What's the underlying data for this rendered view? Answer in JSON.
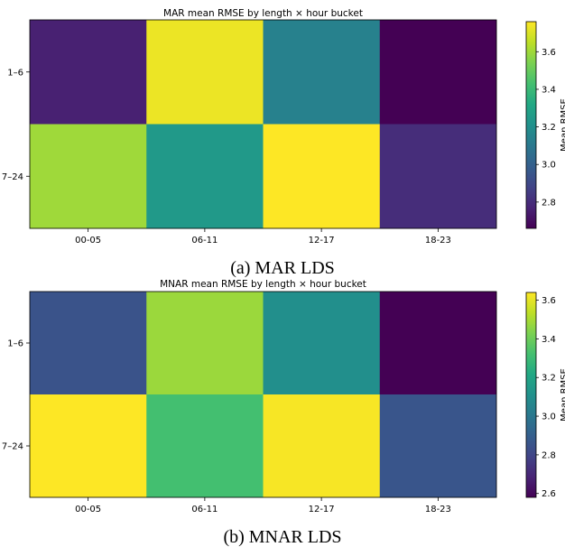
{
  "chart_data": [
    {
      "type": "heatmap",
      "title": "MAR mean RMSE by length × hour bucket",
      "caption": "(a) MAR LDS",
      "x_categories": [
        "00-05",
        "06-11",
        "12-17",
        "18-23"
      ],
      "y_categories": [
        "1–6",
        "7–24"
      ],
      "values": [
        [
          2.76,
          3.73,
          3.14,
          2.66
        ],
        [
          3.6,
          3.25,
          3.76,
          2.8
        ]
      ],
      "colorbar": {
        "label": "Mean RMSE",
        "min": 2.66,
        "max": 3.76,
        "ticks": [
          2.8,
          3.0,
          3.2,
          3.4,
          3.6
        ],
        "tick_labels": [
          "2.8",
          "3.0",
          "3.2",
          "3.4",
          "3.6"
        ]
      },
      "colormap": "viridis"
    },
    {
      "type": "heatmap",
      "title": "MNAR mean RMSE by length × hour bucket",
      "caption": "(b) MNAR LDS",
      "x_categories": [
        "00-05",
        "06-11",
        "12-17",
        "18-23"
      ],
      "y_categories": [
        "1–6",
        "7–24"
      ],
      "values": [
        [
          2.85,
          3.48,
          3.1,
          2.58
        ],
        [
          3.64,
          3.32,
          3.63,
          2.86
        ]
      ],
      "colorbar": {
        "label": "Mean RMSE",
        "min": 2.58,
        "max": 3.64,
        "ticks": [
          2.6,
          2.8,
          3.0,
          3.2,
          3.4,
          3.6
        ],
        "tick_labels": [
          "2.6",
          "2.8",
          "3.0",
          "3.2",
          "3.4",
          "3.6"
        ]
      },
      "colormap": "viridis"
    }
  ]
}
